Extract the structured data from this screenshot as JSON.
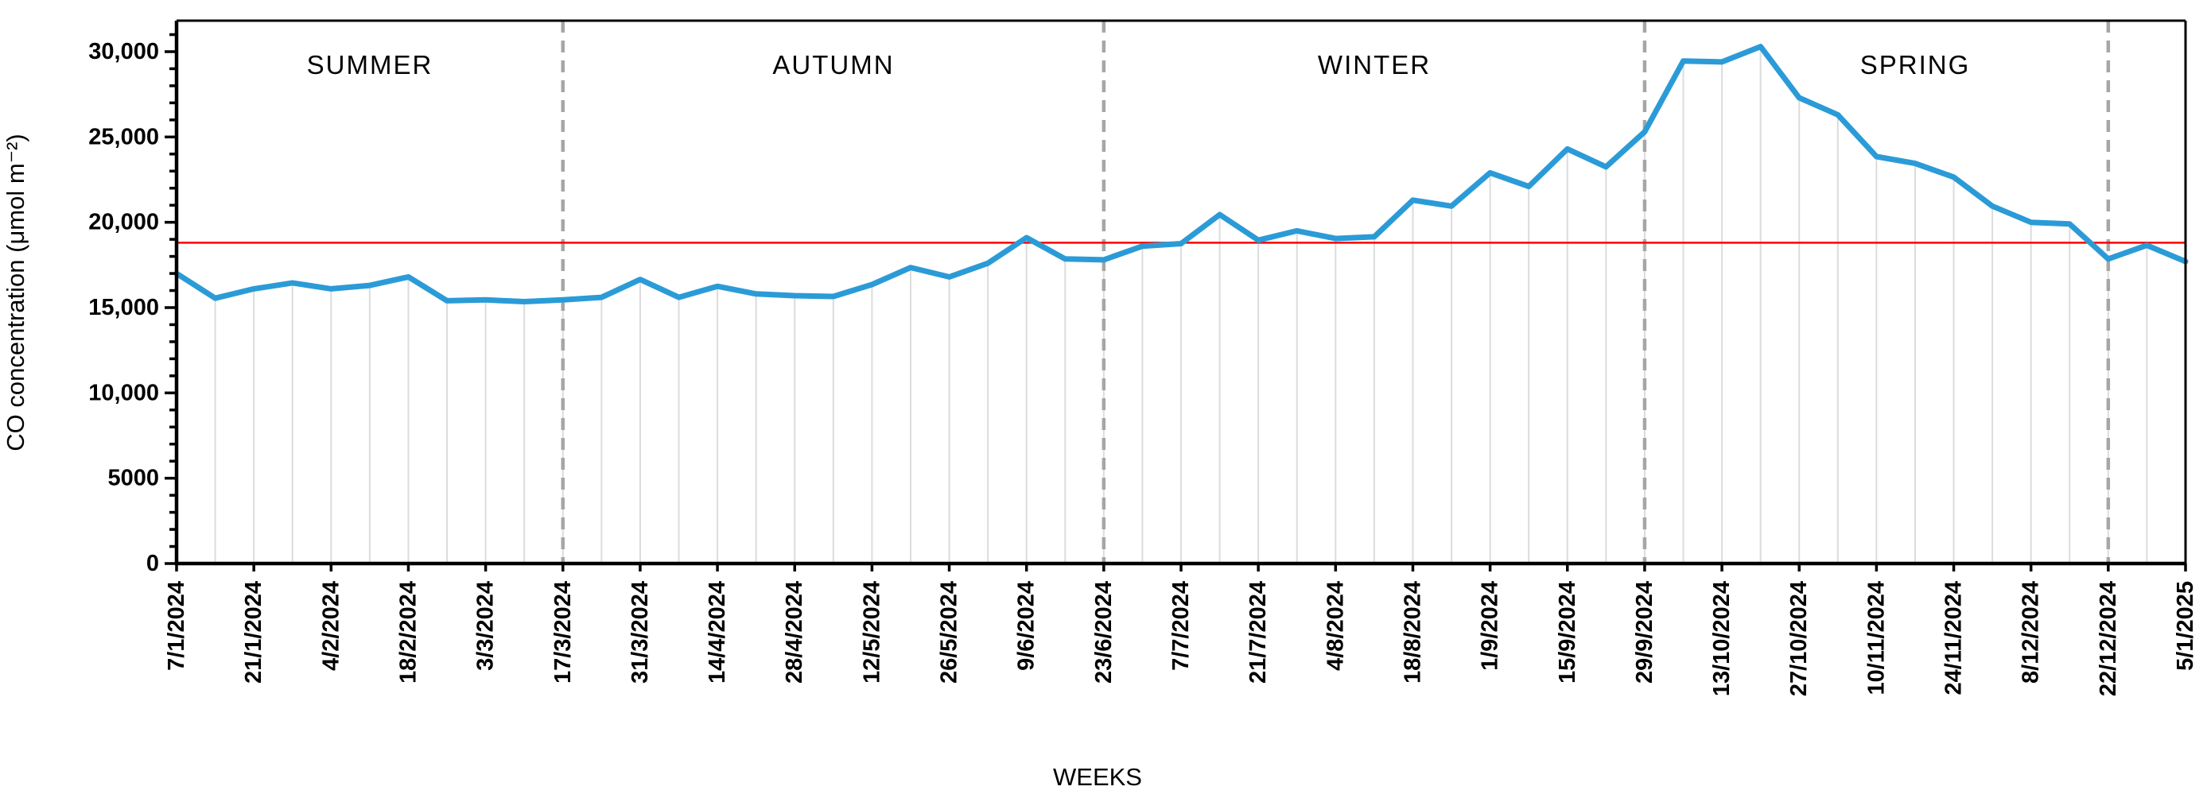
{
  "page": {
    "background": "#ffffff"
  },
  "chart_data": {
    "type": "line",
    "title": "",
    "xlabel": "WEEKS",
    "ylabel": "CO concentration (μmol m⁻²)",
    "legend": "none",
    "grid": "vertical weekly drop lines only",
    "ylim": [
      0,
      31100
    ],
    "ytick_values": [
      0,
      5000,
      10000,
      15000,
      20000,
      25000,
      30000
    ],
    "ytick_labels": [
      "0",
      "5000",
      "10,000",
      "15,000",
      "20,000",
      "25,000",
      "30,000"
    ],
    "y_minor_tick_step": 1000,
    "x": [
      "7/1/2024",
      "14/1/2024",
      "21/1/2024",
      "28/1/2024",
      "4/2/2024",
      "11/2/2024",
      "18/2/2024",
      "25/2/2024",
      "3/3/2024",
      "10/3/2024",
      "17/3/2024",
      "24/3/2024",
      "31/3/2024",
      "7/4/2024",
      "14/4/2024",
      "21/4/2024",
      "28/4/2024",
      "5/5/2024",
      "12/5/2024",
      "19/5/2024",
      "26/5/2024",
      "2/6/2024",
      "9/6/2024",
      "16/6/2024",
      "23/6/2024",
      "30/6/2024",
      "7/7/2024",
      "14/7/2024",
      "21/7/2024",
      "28/7/2024",
      "4/8/2024",
      "11/8/2024",
      "18/8/2024",
      "25/8/2024",
      "1/9/2024",
      "8/9/2024",
      "15/9/2024",
      "22/9/2024",
      "29/9/2024",
      "6/10/2024",
      "13/10/2024",
      "20/10/2024",
      "27/10/2024",
      "3/11/2024",
      "10/11/2024",
      "17/11/2024",
      "24/11/2024",
      "1/12/2024",
      "8/12/2024",
      "15/12/2024",
      "22/12/2024",
      "29/12/2024",
      "5/1/2025"
    ],
    "x_tick_every": 2,
    "x_tick_labels": [
      "7/1/2024",
      "21/1/2024",
      "4/2/2024",
      "18/2/2024",
      "3/3/2024",
      "17/3/2024",
      "31/3/2024",
      "14/4/2024",
      "28/4/2024",
      "12/5/2024",
      "26/5/2024",
      "9/6/2024",
      "23/6/2024",
      "7/7/2024",
      "21/7/2024",
      "4/8/2024",
      "18/8/2024",
      "1/9/2024",
      "15/9/2024",
      "29/9/2024",
      "13/10/2024",
      "27/10/2024",
      "10/11/2024",
      "24/11/2024",
      "8/12/2024",
      "22/12/2024",
      "5/1/2025"
    ],
    "series": [
      {
        "name": "CO concentration",
        "color": "#2B9BD7",
        "values": [
          17000,
          15550,
          16100,
          16450,
          16100,
          16300,
          16800,
          15400,
          15450,
          15350,
          15450,
          15600,
          16650,
          15600,
          16250,
          15800,
          15700,
          15650,
          16350,
          17350,
          16800,
          17600,
          19100,
          17850,
          17800,
          18600,
          18750,
          20450,
          18950,
          19500,
          19050,
          19150,
          21300,
          20950,
          22900,
          22100,
          24300,
          23250,
          25300,
          29450,
          29400,
          30300,
          27300,
          26300,
          23850,
          23450,
          22650,
          20950,
          20000,
          19900,
          17850,
          18650,
          17700
        ]
      }
    ],
    "reference_line": {
      "value": 18800,
      "color": "#FF0000"
    },
    "season_dividers": {
      "dates": [
        "17/3/2024",
        "23/6/2024",
        "29/9/2024",
        "22/12/2024"
      ],
      "color": "#A6A6A6",
      "style": "dashed"
    },
    "seasons": [
      {
        "label": "SUMMER",
        "start": "7/1/2024",
        "end": "17/3/2024"
      },
      {
        "label": "AUTUMN",
        "start": "17/3/2024",
        "end": "23/6/2024"
      },
      {
        "label": "WINTER",
        "start": "23/6/2024",
        "end": "29/9/2024"
      },
      {
        "label": "SPRING",
        "start": "29/9/2024",
        "end": "5/1/2025"
      }
    ],
    "colors": {
      "line": "#2B9BD7",
      "reference_line": "#FF0000",
      "drop_lines": "#DCDCDC",
      "dividers": "#A6A6A6",
      "axis": "#000000",
      "text": "#000000"
    }
  }
}
